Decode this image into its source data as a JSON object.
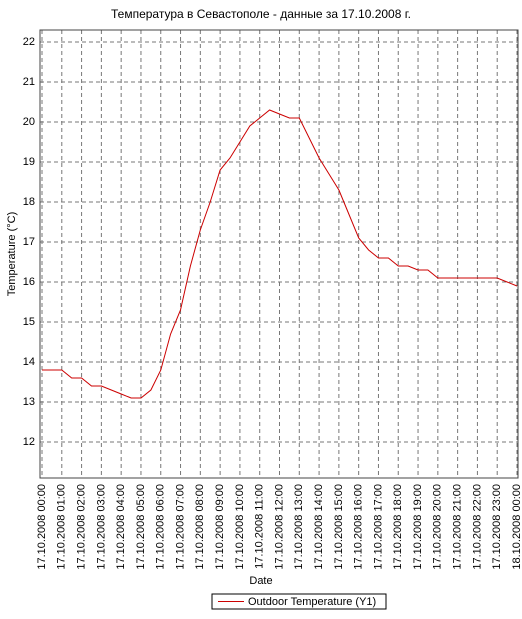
{
  "chart_data": {
    "type": "line",
    "title": "Температура в Севастополе - данные за 17.10.2008 г.",
    "x_label": "Date",
    "y_label": "Temperature (°C)",
    "x": [
      "17.10.2008 00:00",
      "17.10.2008 00:30",
      "17.10.2008 01:00",
      "17.10.2008 01:30",
      "17.10.2008 02:00",
      "17.10.2008 02:30",
      "17.10.2008 03:00",
      "17.10.2008 03:30",
      "17.10.2008 04:00",
      "17.10.2008 04:30",
      "17.10.2008 05:00",
      "17.10.2008 05:30",
      "17.10.2008 06:00",
      "17.10.2008 06:30",
      "17.10.2008 07:00",
      "17.10.2008 07:30",
      "17.10.2008 08:00",
      "17.10.2008 08:30",
      "17.10.2008 09:00",
      "17.10.2008 09:30",
      "17.10.2008 10:00",
      "17.10.2008 10:30",
      "17.10.2008 11:00",
      "17.10.2008 11:30",
      "17.10.2008 12:00",
      "17.10.2008 12:30",
      "17.10.2008 13:00",
      "17.10.2008 13:30",
      "17.10.2008 14:00",
      "17.10.2008 14:30",
      "17.10.2008 15:00",
      "17.10.2008 15:30",
      "17.10.2008 16:00",
      "17.10.2008 16:30",
      "17.10.2008 17:00",
      "17.10.2008 17:30",
      "17.10.2008 18:00",
      "17.10.2008 18:30",
      "17.10.2008 19:00",
      "17.10.2008 19:30",
      "17.10.2008 20:00",
      "17.10.2008 20:30",
      "17.10.2008 21:00",
      "17.10.2008 21:30",
      "17.10.2008 22:00",
      "17.10.2008 22:30",
      "17.10.2008 23:00",
      "17.10.2008 23:30",
      "18.10.2008 00:00"
    ],
    "series": [
      {
        "name": "Outdoor Temperature (Y1)",
        "color": "#cc0000",
        "values": [
          13.8,
          13.8,
          13.8,
          13.6,
          13.6,
          13.4,
          13.4,
          13.3,
          13.2,
          13.1,
          13.1,
          13.3,
          13.8,
          14.7,
          15.3,
          16.4,
          17.3,
          18.0,
          18.8,
          19.1,
          19.5,
          19.9,
          20.1,
          20.3,
          20.2,
          20.1,
          20.1,
          19.6,
          19.1,
          18.7,
          18.3,
          17.7,
          17.1,
          16.8,
          16.6,
          16.6,
          16.4,
          16.4,
          16.3,
          16.3,
          16.1,
          16.1,
          16.1,
          16.1,
          16.1,
          16.1,
          16.1,
          16.0,
          15.9
        ]
      }
    ],
    "xlim": [
      "17.10.2008 00:00",
      "18.10.2008 00:00"
    ],
    "xticks": [
      "17.10.2008 00:00",
      "17.10.2008 01:00",
      "17.10.2008 02:00",
      "17.10.2008 03:00",
      "17.10.2008 04:00",
      "17.10.2008 05:00",
      "17.10.2008 06:00",
      "17.10.2008 07:00",
      "17.10.2008 08:00",
      "17.10.2008 09:00",
      "17.10.2008 10:00",
      "17.10.2008 11:00",
      "17.10.2008 12:00",
      "17.10.2008 13:00",
      "17.10.2008 14:00",
      "17.10.2008 15:00",
      "17.10.2008 16:00",
      "17.10.2008 17:00",
      "17.10.2008 18:00",
      "17.10.2008 19:00",
      "17.10.2008 20:00",
      "17.10.2008 21:00",
      "17.10.2008 22:00",
      "17.10.2008 23:00",
      "18.10.2008 00:00"
    ],
    "ylim": [
      11.1,
      22.3
    ],
    "yticks": [
      12,
      13,
      14,
      15,
      16,
      17,
      18,
      19,
      20,
      21,
      22
    ],
    "grid": true
  }
}
